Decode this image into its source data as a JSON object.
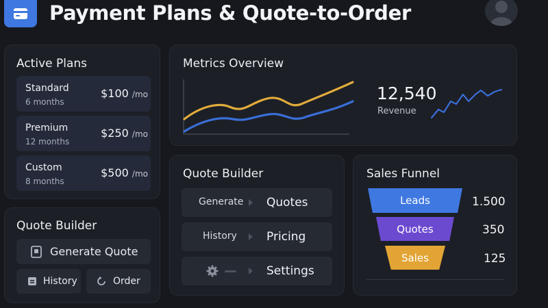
{
  "header": {
    "title": "Payment Plans & Quote-to-Order",
    "logo_icon": "credit-card-icon",
    "avatar_icon": "user-avatar-icon"
  },
  "active_plans": {
    "title": "Active Plans",
    "plans": [
      {
        "name": "Standard",
        "duration": "6 months",
        "price": "$100",
        "unit": "/mo"
      },
      {
        "name": "Premium",
        "duration": "12 months",
        "price": "$250",
        "unit": "/mo"
      },
      {
        "name": "Custom",
        "duration": "8 months",
        "price": "$500",
        "unit": "/mo"
      }
    ]
  },
  "quote_builder_small": {
    "title": "Quote Builder",
    "generate_label": "Generate Quote",
    "history_label": "History",
    "order_label": "Order"
  },
  "metrics": {
    "title": "Metrics Overview",
    "value": "12,540",
    "value_label": "Revenue",
    "colors": {
      "series_a": "#e2ac3c",
      "series_b": "#3a6fd8"
    }
  },
  "quote_builder": {
    "title": "Quote Builder",
    "rows": [
      {
        "left": "Generate",
        "right": "Quotes"
      },
      {
        "left": "History",
        "right": "Pricing"
      },
      {
        "left": "",
        "right": "Settings"
      }
    ]
  },
  "sales_funnel": {
    "title": "Sales Funnel",
    "stages": [
      {
        "label": "Leads",
        "value": "1.500",
        "color": "#3f78e0"
      },
      {
        "label": "Quotes",
        "value": "350",
        "color": "#6c4ad0"
      },
      {
        "label": "Sales",
        "value": "125",
        "color": "#e2a535"
      }
    ]
  }
}
